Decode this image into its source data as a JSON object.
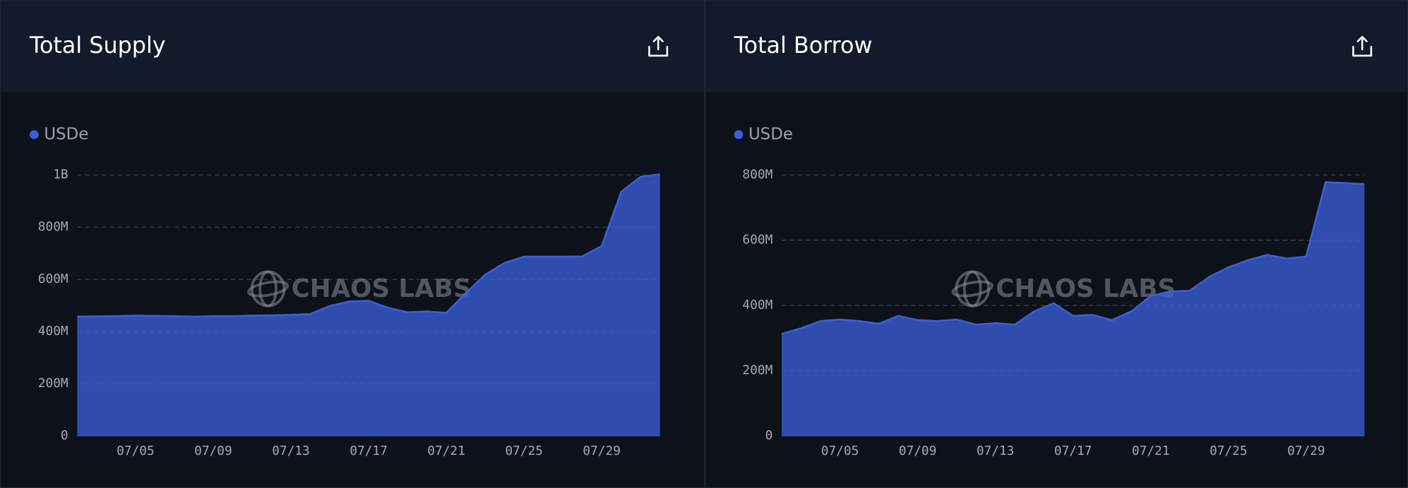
{
  "chart_data": [
    {
      "type": "area",
      "title": "Total Supply",
      "watermark": "CHAOS LABS",
      "categories": [
        null,
        null,
        null,
        "07/05",
        null,
        null,
        null,
        "07/09",
        null,
        null,
        null,
        "07/13",
        null,
        null,
        null,
        "07/17",
        null,
        null,
        null,
        "07/21",
        null,
        null,
        null,
        "07/25",
        null,
        null,
        null,
        "07/29",
        null,
        null,
        null
      ],
      "series": [
        {
          "name": "USDe",
          "color": "#3b5fd9",
          "values": [
            457000000,
            458000000,
            459000000,
            461000000,
            460000000,
            459000000,
            457000000,
            459000000,
            459000000,
            461000000,
            462000000,
            464000000,
            467000000,
            498000000,
            515000000,
            518000000,
            491000000,
            474000000,
            477000000,
            472000000,
            546000000,
            618000000,
            663000000,
            687000000,
            687000000,
            687000000,
            688000000,
            728000000,
            935000000,
            993000000,
            1003000000
          ]
        }
      ],
      "ylim": [
        0,
        1000000000
      ],
      "yticks": [
        0,
        {
          "value": 200000000,
          "label": "200M"
        },
        {
          "value": 400000000,
          "label": "400M"
        },
        {
          "value": 600000000,
          "label": "600M"
        },
        {
          "value": 800000000,
          "label": "800M"
        },
        {
          "value": 1000000000,
          "label": "1B"
        }
      ],
      "grid": true
    },
    {
      "type": "area",
      "title": "Total Borrow",
      "watermark": "CHAOS LABS",
      "categories": [
        null,
        null,
        null,
        "07/05",
        null,
        null,
        null,
        "07/09",
        null,
        null,
        null,
        "07/13",
        null,
        null,
        null,
        "07/17",
        null,
        null,
        null,
        "07/21",
        null,
        null,
        null,
        "07/25",
        null,
        null,
        null,
        "07/29",
        null,
        null,
        null
      ],
      "series": [
        {
          "name": "USDe",
          "color": "#3b5fd9",
          "values": [
            313000000,
            330000000,
            352000000,
            357000000,
            352000000,
            344000000,
            368000000,
            355000000,
            352000000,
            357000000,
            341000000,
            346000000,
            341000000,
            382000000,
            407000000,
            368000000,
            371000000,
            355000000,
            382000000,
            429000000,
            443000000,
            445000000,
            487000000,
            517000000,
            539000000,
            555000000,
            544000000,
            550000000,
            778000000,
            775000000,
            772000000
          ]
        }
      ],
      "ylim": [
        0,
        800000000
      ],
      "yticks": [
        0,
        {
          "value": 200000000,
          "label": "200M"
        },
        {
          "value": 400000000,
          "label": "400M"
        },
        {
          "value": 600000000,
          "label": "600M"
        },
        {
          "value": 800000000,
          "label": "800M"
        }
      ],
      "grid": true
    }
  ]
}
